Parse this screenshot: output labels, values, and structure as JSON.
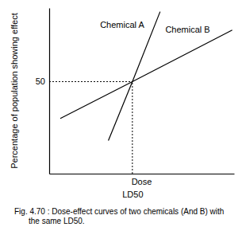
{
  "chart_data": {
    "type": "line",
    "title": "Fig. 4.70 : Dose-effect curves of two chemicals (And B) with the same LD50.",
    "x_label": "Dose",
    "y_label": "Percentage of population showing effect",
    "xlim": [
      0,
      10
    ],
    "xticks": [
      {
        "value": 4.5,
        "label": "LD50"
      }
    ],
    "ylim": [
      0,
      90
    ],
    "yticks": [
      50
    ],
    "grid": false,
    "series": [
      {
        "name": "Chemical A",
        "color": "#000000",
        "x": [
          3.2,
          4.5,
          6.0
        ],
        "values": [
          18,
          50,
          88
        ]
      },
      {
        "name": "Chemical B",
        "color": "#000000",
        "x": [
          0.6,
          4.5,
          9.9
        ],
        "values": [
          30,
          50,
          78
        ]
      }
    ]
  }
}
